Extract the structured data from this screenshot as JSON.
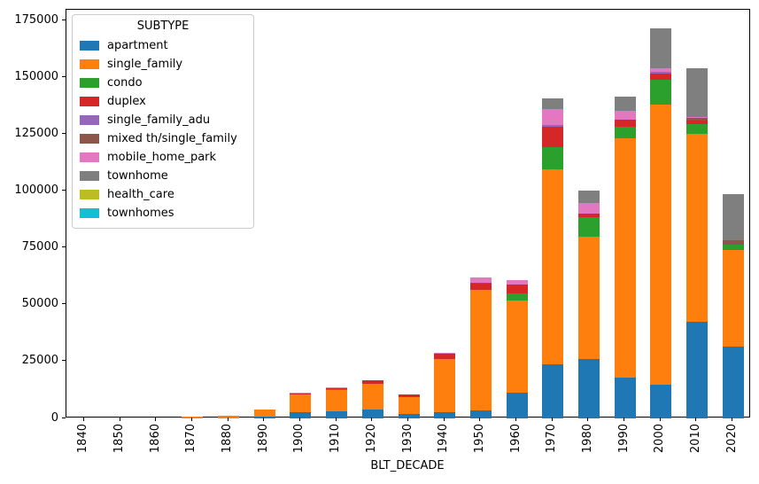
{
  "figure": {
    "background": "#ffffff",
    "text_color": "#000000",
    "spine_color": "#000000",
    "legend_border_color": "#cccccc"
  },
  "chart_data": {
    "type": "bar",
    "stacked": true,
    "title": "",
    "xlabel": "BLT_DECADE",
    "ylabel": "",
    "grid": false,
    "legend_title": "SUBTYPE",
    "legend_position": "upper left",
    "ylim": [
      0,
      180000
    ],
    "y_ticks": [
      0,
      25000,
      50000,
      75000,
      100000,
      125000,
      150000,
      175000
    ],
    "categories": [
      "1840",
      "1850",
      "1860",
      "1870",
      "1880",
      "1890",
      "1900",
      "1910",
      "1920",
      "1930",
      "1940",
      "1950",
      "1960",
      "1970",
      "1980",
      "1990",
      "2000",
      "2010",
      "2020"
    ],
    "series": [
      {
        "name": "apartment",
        "color": "#1f77b4",
        "values": [
          0,
          0,
          0,
          0,
          0,
          700,
          2800,
          3200,
          3900,
          2000,
          2600,
          3600,
          11500,
          24000,
          26200,
          18000,
          15000,
          42500,
          31500
        ]
      },
      {
        "name": "single_family",
        "color": "#ff7f0e",
        "values": [
          0,
          0,
          0,
          650,
          1300,
          3300,
          7700,
          9300,
          11500,
          7500,
          23600,
          53200,
          40300,
          85800,
          54000,
          105200,
          123400,
          83000,
          42500
        ]
      },
      {
        "name": "condo",
        "color": "#2ca02c",
        "values": [
          0,
          0,
          0,
          0,
          0,
          0,
          0,
          300,
          0,
          0,
          0,
          0,
          3300,
          9700,
          8500,
          5100,
          10800,
          4000,
          2700
        ]
      },
      {
        "name": "duplex",
        "color": "#d62728",
        "values": [
          0,
          0,
          0,
          0,
          0,
          0,
          500,
          700,
          1300,
          900,
          2400,
          2700,
          3700,
          9100,
          1600,
          3400,
          2500,
          1600,
          0
        ]
      },
      {
        "name": "single_family_adu",
        "color": "#9467bd",
        "values": [
          0,
          0,
          0,
          0,
          0,
          0,
          0,
          0,
          0,
          0,
          0,
          0,
          0,
          700,
          0,
          0,
          800,
          0,
          0
        ]
      },
      {
        "name": "mixed th/single_family",
        "color": "#8c564b",
        "values": [
          0,
          0,
          0,
          0,
          0,
          0,
          0,
          0,
          0,
          0,
          0,
          300,
          0,
          0,
          0,
          0,
          0,
          1200,
          1600
        ]
      },
      {
        "name": "mobile_home_park",
        "color": "#e377c2",
        "values": [
          0,
          0,
          0,
          0,
          0,
          0,
          300,
          300,
          0,
          0,
          200,
          2200,
          2200,
          7100,
          4500,
          3600,
          1800,
          500,
          0
        ]
      },
      {
        "name": "townhome",
        "color": "#7f7f7f",
        "values": [
          0,
          0,
          0,
          0,
          0,
          0,
          0,
          0,
          0,
          0,
          0,
          0,
          0,
          4600,
          5600,
          6600,
          17500,
          21500,
          20400
        ]
      },
      {
        "name": "health_care",
        "color": "#bcbd22",
        "values": [
          0,
          0,
          0,
          0,
          0,
          0,
          0,
          0,
          0,
          0,
          0,
          0,
          0,
          0,
          0,
          0,
          0,
          0,
          0
        ]
      },
      {
        "name": "townhomes",
        "color": "#17becf",
        "values": [
          0,
          0,
          0,
          0,
          0,
          0,
          0,
          0,
          0,
          0,
          0,
          0,
          0,
          0,
          0,
          0,
          0,
          0,
          0
        ]
      }
    ]
  }
}
